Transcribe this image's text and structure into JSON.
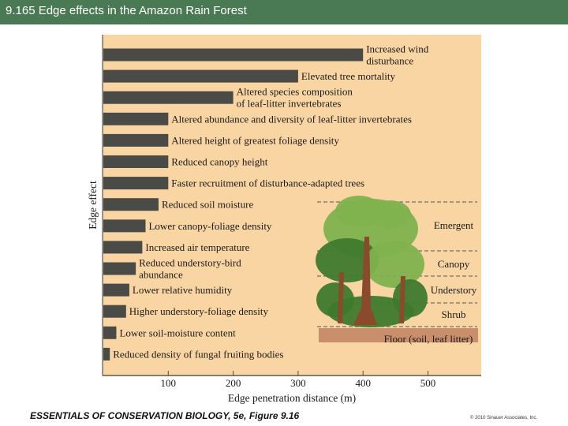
{
  "header": {
    "title": "9.165 Edge effects in the Amazon Rain Forest"
  },
  "footer": {
    "book": "ESSENTIALS OF CONSERVATION BIOLOGY, 5e, Figure 9.16",
    "copyright": "© 2010 Sinauer Associates, Inc."
  },
  "colors": {
    "header": "#4a7a54",
    "panel": "#f8d5a3",
    "bar": "#4a4a46",
    "tree_light": "#7fb24e",
    "tree_dark": "#3e7a2e",
    "trunk": "#8b4a2b",
    "floor": "#c98e6c"
  },
  "chart_data": {
    "type": "bar",
    "orientation": "horizontal",
    "title": "",
    "xlabel": "Edge penetration distance (m)",
    "ylabel": "Edge effect",
    "xlim": [
      0,
      580
    ],
    "xticks": [
      100,
      200,
      300,
      400,
      500
    ],
    "categories": [
      [
        "Increased wind",
        "disturbance"
      ],
      [
        "Elevated tree mortality"
      ],
      [
        "Altered species composition",
        "of leaf-litter invertebrates"
      ],
      [
        "Altered abundance and diversity of leaf-litter invertebrates"
      ],
      [
        "Altered height of greatest foliage density"
      ],
      [
        "Reduced canopy height"
      ],
      [
        "Faster recruitment of disturbance-adapted trees"
      ],
      [
        "Reduced soil moisture"
      ],
      [
        "Lower canopy-foliage density"
      ],
      [
        "Increased air temperature"
      ],
      [
        "Reduced understory-bird",
        "abundance"
      ],
      [
        "Lower relative humidity"
      ],
      [
        "Higher understory-foliage density"
      ],
      [
        "Lower soil-moisture content"
      ],
      [
        "Reduced density of fungal fruiting bodies"
      ]
    ],
    "values": [
      400,
      300,
      200,
      100,
      100,
      100,
      100,
      85,
      65,
      60,
      50,
      40,
      35,
      20,
      10
    ],
    "strata": [
      "Emergent",
      "Canopy",
      "Understory",
      "Shrub",
      "Floor (soil, leaf litter)"
    ]
  }
}
